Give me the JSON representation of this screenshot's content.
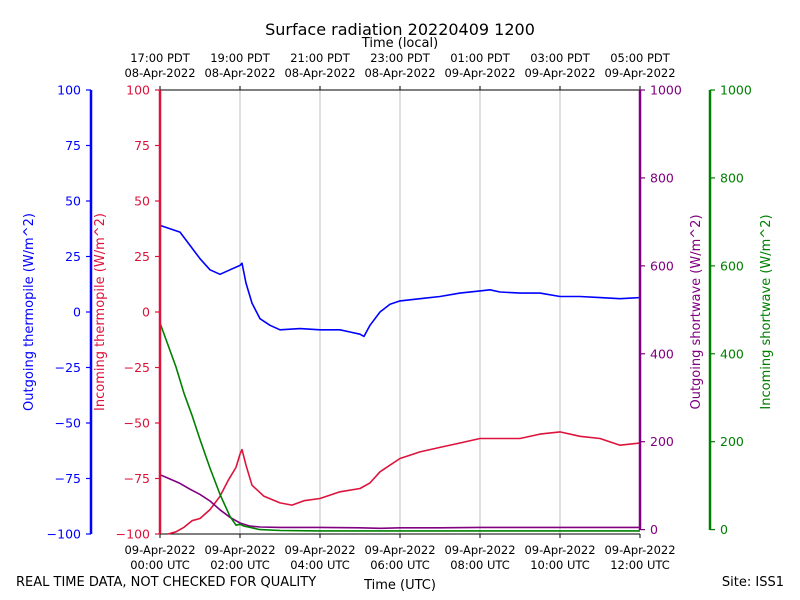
{
  "title": "Surface radiation 20220409 1200",
  "footer": {
    "left": "REAL TIME DATA, NOT CHECKED FOR QUALITY",
    "right": "Site: ISS1"
  },
  "chart_data": {
    "type": "line",
    "title": "Surface radiation 20220409 1200",
    "xlabel_bottom": "Time (UTC)",
    "xlabel_top": "Time (local)",
    "xlim_hours_utc": [
      0,
      12
    ],
    "x_ticks_utc": [
      {
        "hour": 0,
        "line1": "09-Apr-2022",
        "line2": "00:00 UTC"
      },
      {
        "hour": 2,
        "line1": "09-Apr-2022",
        "line2": "02:00 UTC"
      },
      {
        "hour": 4,
        "line1": "09-Apr-2022",
        "line2": "04:00 UTC"
      },
      {
        "hour": 6,
        "line1": "09-Apr-2022",
        "line2": "06:00 UTC"
      },
      {
        "hour": 8,
        "line1": "09-Apr-2022",
        "line2": "08:00 UTC"
      },
      {
        "hour": 10,
        "line1": "09-Apr-2022",
        "line2": "10:00 UTC"
      },
      {
        "hour": 12,
        "line1": "09-Apr-2022",
        "line2": "12:00 UTC"
      }
    ],
    "x_ticks_local": [
      {
        "hour": 0,
        "line1": "17:00 PDT",
        "line2": "08-Apr-2022"
      },
      {
        "hour": 2,
        "line1": "19:00 PDT",
        "line2": "08-Apr-2022"
      },
      {
        "hour": 4,
        "line1": "21:00 PDT",
        "line2": "08-Apr-2022"
      },
      {
        "hour": 6,
        "line1": "23:00 PDT",
        "line2": "08-Apr-2022"
      },
      {
        "hour": 8,
        "line1": "01:00 PDT",
        "line2": "09-Apr-2022"
      },
      {
        "hour": 10,
        "line1": "03:00 PDT",
        "line2": "09-Apr-2022"
      },
      {
        "hour": 12,
        "line1": "05:00 PDT",
        "line2": "09-Apr-2022"
      }
    ],
    "grid": "vertical",
    "axes": [
      {
        "id": "outgoing_thermopile",
        "label": "Outgoing thermopile (W/m^2)",
        "color": "#0000ff",
        "side": "left-outer",
        "ylim": [
          -100,
          100
        ],
        "ticks": [
          -100,
          -75,
          -50,
          -25,
          0,
          25,
          50,
          75,
          100
        ]
      },
      {
        "id": "incoming_thermopile",
        "label": "Incoming thermopile (W/m^2)",
        "color": "#dc143c",
        "side": "left-inner",
        "ylim": [
          -100,
          100
        ],
        "ticks": [
          -100,
          -75,
          -50,
          -25,
          0,
          25,
          50,
          75,
          100
        ]
      },
      {
        "id": "outgoing_shortwave",
        "label": "Outgoing shortwave (W/m^2)",
        "color": "#800080",
        "side": "right-inner",
        "ylim": [
          -10,
          1000
        ],
        "ticks": [
          0,
          200,
          400,
          600,
          800,
          1000
        ]
      },
      {
        "id": "incoming_shortwave",
        "label": "Incoming shortwave (W/m^2)",
        "color": "#008000",
        "side": "right-outer",
        "ylim": [
          -10,
          1000
        ],
        "ticks": [
          0,
          200,
          400,
          600,
          800,
          1000
        ]
      }
    ],
    "series": [
      {
        "name": "Outgoing thermopile (W/m^2)",
        "axis": "outgoing_thermopile",
        "color": "#0000ff",
        "x": [
          0,
          0.25,
          0.5,
          0.75,
          1.0,
          1.25,
          1.5,
          1.75,
          2.0,
          2.05,
          2.15,
          2.3,
          2.5,
          2.75,
          3.0,
          3.5,
          4.0,
          4.5,
          4.75,
          5.0,
          5.1,
          5.25,
          5.5,
          5.75,
          6.0,
          6.5,
          7.0,
          7.5,
          8.0,
          8.25,
          8.5,
          9.0,
          9.5,
          10.0,
          10.5,
          11.0,
          11.5,
          12.0
        ],
        "y": [
          39,
          37.5,
          36,
          30,
          24,
          19,
          17,
          19,
          21,
          22,
          13,
          4,
          -3,
          -6,
          -8,
          -7.5,
          -8,
          -8,
          -9,
          -10,
          -11,
          -6,
          0,
          3.5,
          5,
          6,
          7,
          8.5,
          9.5,
          10,
          9,
          8.5,
          8.5,
          7,
          7,
          6.5,
          6,
          6.5
        ]
      },
      {
        "name": "Incoming thermopile (W/m^2)",
        "axis": "incoming_thermopile",
        "color": "#dc143c",
        "x": [
          0.2,
          0.4,
          0.6,
          0.8,
          1.0,
          1.25,
          1.5,
          1.7,
          1.9,
          2.0,
          2.05,
          2.15,
          2.3,
          2.6,
          3.0,
          3.3,
          3.6,
          4.0,
          4.5,
          5.0,
          5.25,
          5.5,
          6.0,
          6.5,
          7.0,
          7.5,
          8.0,
          8.5,
          9.0,
          9.5,
          10.0,
          10.5,
          11.0,
          11.5,
          12.0
        ],
        "y": [
          -100,
          -99,
          -97,
          -94,
          -93,
          -89,
          -83,
          -76,
          -70,
          -64,
          -62,
          -69,
          -78,
          -83,
          -86,
          -87,
          -85,
          -84,
          -81,
          -79.5,
          -77,
          -72,
          -66,
          -63,
          -61,
          -59,
          -57,
          -57,
          -57,
          -55,
          -54,
          -56,
          -57,
          -60,
          -59
        ]
      },
      {
        "name": "Outgoing shortwave (W/m^2)",
        "axis": "outgoing_shortwave",
        "color": "#800080",
        "x": [
          0,
          0.25,
          0.5,
          0.75,
          1.0,
          1.25,
          1.5,
          1.75,
          2.0,
          2.25,
          2.5,
          3.0,
          4.0,
          5.0,
          5.5,
          6.0,
          7.0,
          8.0,
          9.0,
          10.0,
          11.0,
          12.0
        ],
        "y": [
          125,
          115,
          105,
          92,
          80,
          65,
          45,
          28,
          15,
          8,
          6,
          5,
          5,
          4,
          3,
          4,
          4,
          5,
          5,
          5,
          5,
          5
        ]
      },
      {
        "name": "Incoming shortwave (W/m^2)",
        "axis": "incoming_shortwave",
        "color": "#008000",
        "x": [
          0,
          0.2,
          0.4,
          0.6,
          0.8,
          1.0,
          1.25,
          1.5,
          1.75,
          1.9,
          2.0,
          2.1,
          2.25,
          2.5,
          3.0,
          4.0,
          6.0,
          8.0,
          10.0,
          12.0
        ],
        "y": [
          470,
          420,
          370,
          310,
          260,
          205,
          140,
          80,
          30,
          10,
          12,
          8,
          5,
          0,
          -2,
          -3,
          -3,
          -3,
          -3,
          -3
        ]
      }
    ]
  }
}
